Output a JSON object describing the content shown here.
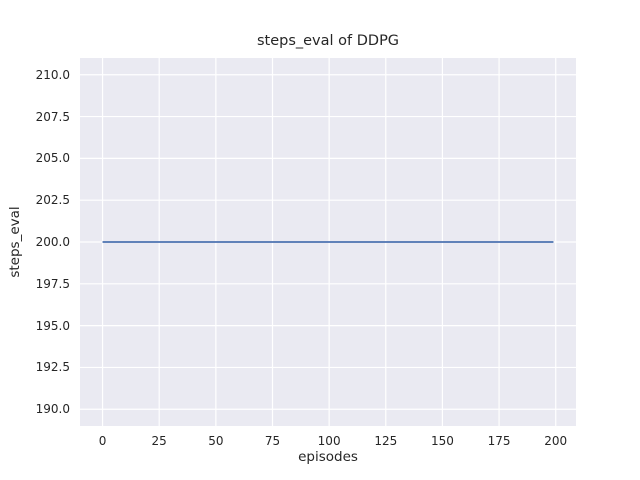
{
  "chart_data": {
    "type": "line",
    "title": "steps_eval of DDPG",
    "xlabel": "episodes",
    "ylabel": "steps_eval",
    "xlim": [
      -9.95,
      208.95
    ],
    "ylim": [
      189.0,
      211.0
    ],
    "xticks": [
      0,
      25,
      50,
      75,
      100,
      125,
      150,
      175,
      200
    ],
    "xtick_labels": [
      "0",
      "25",
      "50",
      "75",
      "100",
      "125",
      "150",
      "175",
      "200"
    ],
    "yticks": [
      190.0,
      192.5,
      195.0,
      197.5,
      200.0,
      202.5,
      205.0,
      207.5,
      210.0
    ],
    "ytick_labels": [
      "190.0",
      "192.5",
      "195.0",
      "197.5",
      "200.0",
      "202.5",
      "205.0",
      "207.5",
      "210.0"
    ],
    "grid": true,
    "legend_position": "none",
    "series": [
      {
        "name": "steps_eval",
        "color": "#4c72b0",
        "x": [
          0,
          199
        ],
        "y": [
          200.0,
          200.0
        ],
        "description": "constant value 200 for every episode from 0 to 199"
      }
    ],
    "colors": {
      "plot_background": "#eaeaf2",
      "gridline": "#ffffff",
      "text": "#262626",
      "figure_background": "#ffffff"
    }
  }
}
